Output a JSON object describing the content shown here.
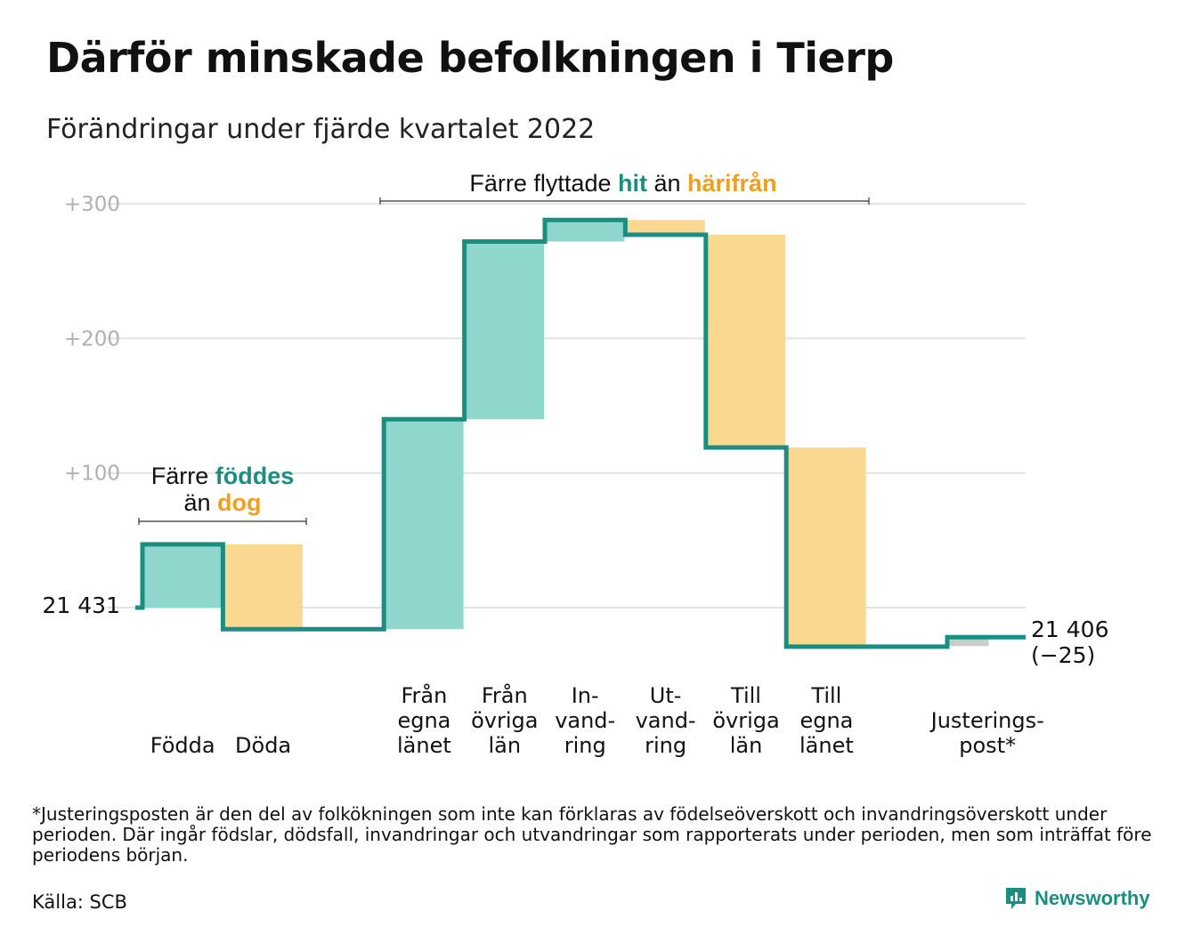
{
  "title": "Därför minskade befolkningen i Tierp",
  "subtitle": "Förändringar under fjärde kvartalet 2022",
  "colors": {
    "accent": "#1a8e80",
    "increase_fill": "#8fd6cc",
    "decrease_fill": "#fbd88f",
    "highlight_teal": "#1a8e80",
    "highlight_orange": "#f0a020",
    "adjust_fill": "#cccccc",
    "grid": "#e2e2e2",
    "tick_text": "#b0b0b0"
  },
  "annotations": {
    "births": {
      "line1_a": "Färre ",
      "line1_b": "föddes",
      "line2_a": "än ",
      "line2_b": "dog"
    },
    "moves": {
      "a": "Färre flyttade ",
      "b": "hit",
      "c": " än ",
      "d": "härifrån"
    }
  },
  "start_label": "21 431",
  "end_label": {
    "line1": "21 406",
    "line2": "(−25)"
  },
  "footnote": "*Justeringsposten är den del av folkökningen som inte kan förklaras av födelseöverskott och invandringsöverskott under perioden. Där ingår födslar, dödsfall, invandringar och utvandringar som rapporterats under perioden, men som inträffat före periodens början.",
  "source": "Källa: SCB",
  "brand": "Newsworthy",
  "chart_data": {
    "type": "bar",
    "subtype": "waterfall",
    "baseline": 21431,
    "yticks": [
      {
        "value": 300,
        "label": "+300"
      },
      {
        "value": 200,
        "label": "+200"
      },
      {
        "value": 100,
        "label": "+100"
      }
    ],
    "ylim": [
      -40,
      300
    ],
    "grid": true,
    "categories": [
      {
        "label": [
          "Födda"
        ],
        "change": 47,
        "kind": "increase"
      },
      {
        "label": [
          "Döda"
        ],
        "change": -63,
        "kind": "decrease"
      },
      {
        "label": [],
        "change": 0,
        "kind": "gap"
      },
      {
        "label": [
          "Från",
          "egna",
          "länet"
        ],
        "change": 156,
        "kind": "increase"
      },
      {
        "label": [
          "Från",
          "övriga",
          "län"
        ],
        "change": 132,
        "kind": "increase"
      },
      {
        "label": [
          "In-",
          "vand-",
          "ring"
        ],
        "change": 16,
        "kind": "increase"
      },
      {
        "label": [
          "Ut-",
          "vand-",
          "ring"
        ],
        "change": -11,
        "kind": "decrease"
      },
      {
        "label": [
          "Till",
          "övriga",
          "län"
        ],
        "change": -158,
        "kind": "decrease"
      },
      {
        "label": [
          "Till",
          "egna",
          "länet"
        ],
        "change": -148,
        "kind": "decrease"
      },
      {
        "label": [],
        "change": 0,
        "kind": "gap"
      },
      {
        "label": [
          "Justerings-",
          "post*"
        ],
        "change": 7,
        "kind": "adjust"
      }
    ]
  }
}
